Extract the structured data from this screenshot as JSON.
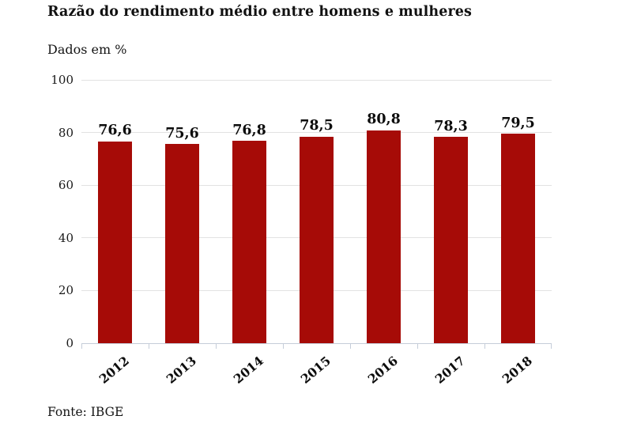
{
  "header": {
    "title": "Razão do rendimento médio entre homens e mulheres",
    "subtitle": "Dados em %"
  },
  "footer": {
    "source": "Fonte: IBGE"
  },
  "chart_data": {
    "type": "bar",
    "title": "Razão do rendimento médio entre homens e mulheres",
    "subtitle": "Dados em %",
    "unit": "%",
    "categories": [
      "2012",
      "2013",
      "2014",
      "2015",
      "2016",
      "2017",
      "2018"
    ],
    "values": [
      76.6,
      75.6,
      76.8,
      78.5,
      80.8,
      78.3,
      79.5
    ],
    "value_labels": [
      "76,6",
      "75,6",
      "76,8",
      "78,5",
      "80,8",
      "78,3",
      "79,5"
    ],
    "ylim": [
      0,
      100
    ],
    "yticks": [
      0,
      20,
      40,
      60,
      80,
      100
    ],
    "ytick_labels": [
      "0",
      "20",
      "40",
      "60",
      "80",
      "100"
    ],
    "grid": true,
    "legend": "none",
    "source": "Fonte: IBGE",
    "colors": {
      "bar": "#a60b07",
      "grid": "#e2e2e2",
      "axis": "#c5cdd9",
      "text": "#151515"
    }
  }
}
